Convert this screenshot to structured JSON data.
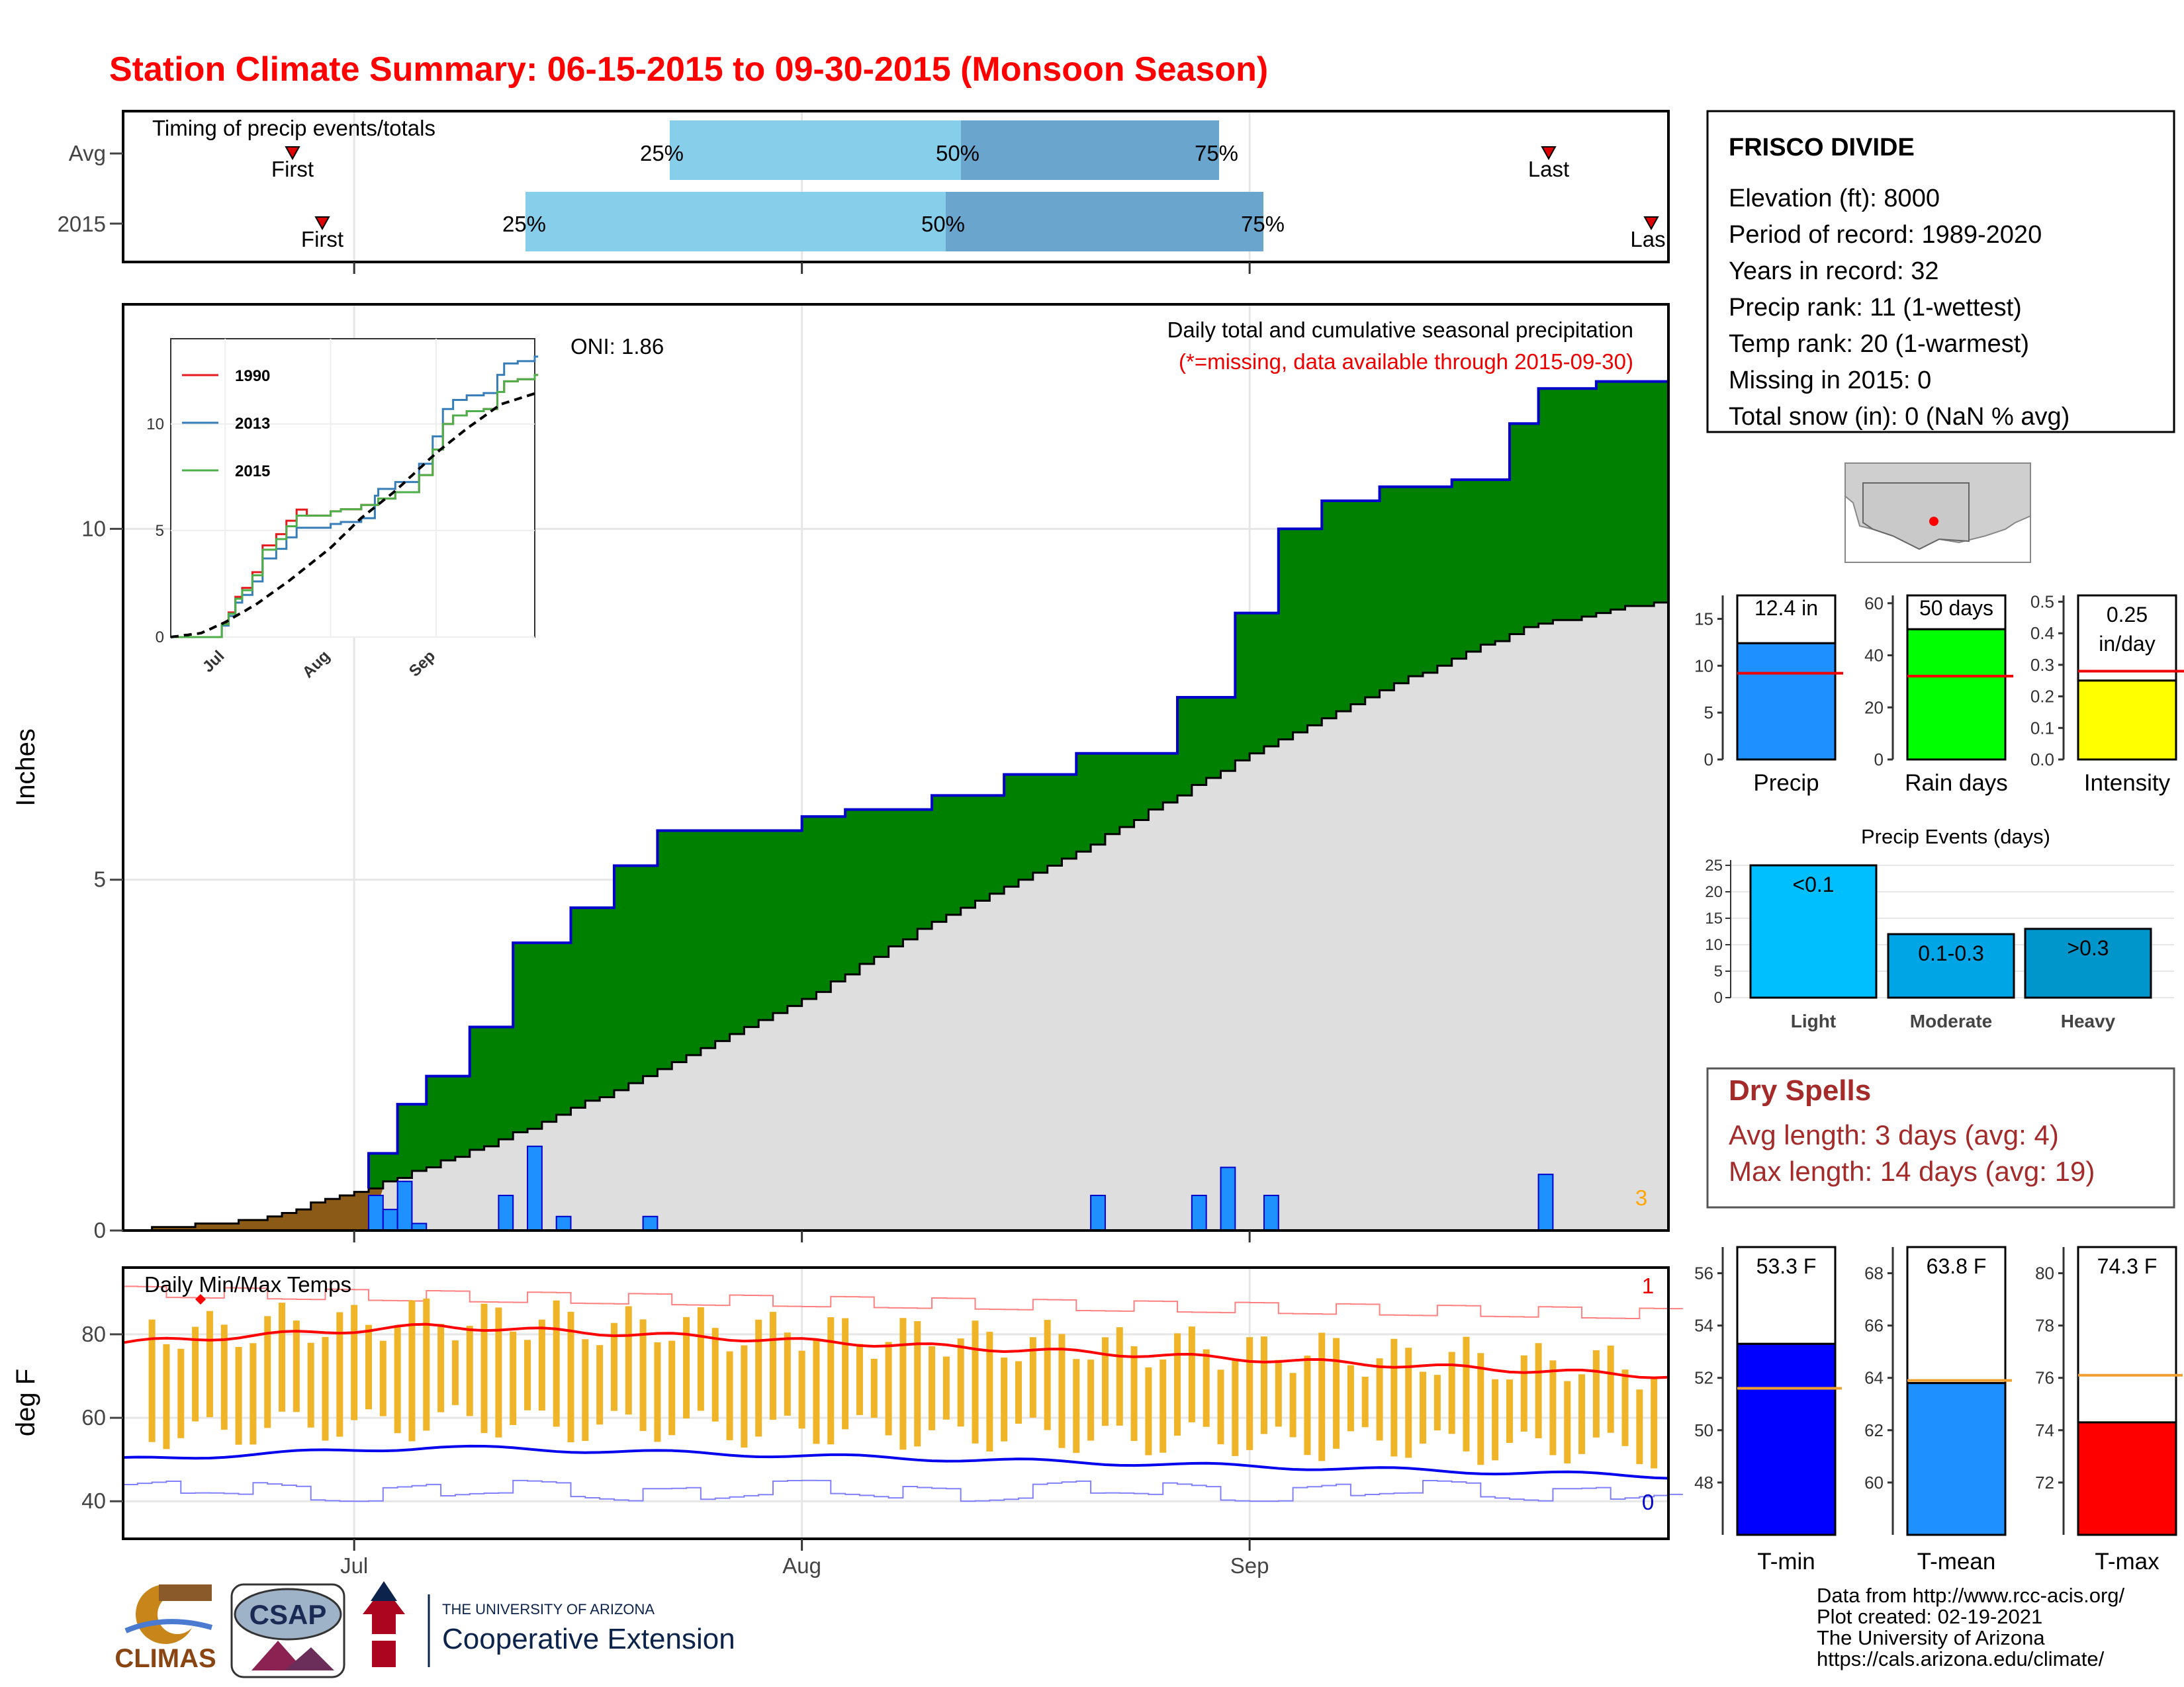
{
  "title": "Station Climate Summary: 06-15-2015 to 09-30-2015 (Monsoon Season)",
  "timing": {
    "label": "Timing of precip events/totals",
    "rows": [
      {
        "name": "Avg",
        "first": "First",
        "last": "Last",
        "p25": "25%",
        "p50": "50%",
        "p75": "75%"
      },
      {
        "name": "2015",
        "first": "First",
        "last": "Las",
        "p25": "25%",
        "p50": "50%",
        "p75": "75%"
      }
    ]
  },
  "precip_panel": {
    "ylabel": "Inches",
    "subtitle": "Daily total and cumulative seasonal precipitation",
    "note": "(*=missing, data available through 2015-09-30)",
    "oni": "ONI: 1.86",
    "corner_count": "3",
    "yticks": [
      "0",
      "5",
      "10"
    ]
  },
  "inset": {
    "legend": [
      "1990",
      "2013",
      "2015"
    ],
    "yticks": [
      "0",
      "5",
      "10"
    ],
    "xticks": [
      "Jul",
      "Aug",
      "Sep"
    ],
    "colors": {
      "1990": "#e41a1c",
      "2013": "#377eb8",
      "2015": "#4daf4a"
    }
  },
  "temp_panel": {
    "ylabel": "deg F",
    "label": "Daily Min/Max Temps",
    "top_count": "1",
    "bottom_count": "0",
    "yticks": [
      "40",
      "60",
      "80"
    ],
    "xticks": [
      "Jul",
      "Aug",
      "Sep"
    ]
  },
  "station": {
    "name": "FRISCO DIVIDE",
    "lines": [
      "Elevation (ft): 8000",
      "Period of record: 1989-2020",
      "Years in record: 32",
      "Precip rank: 11 (1-wettest)",
      "Temp rank: 20 (1-warmest)",
      "Missing in 2015: 0",
      "Total snow (in): 0 (NaN % avg)"
    ]
  },
  "mini_bars": [
    {
      "label": "Precip",
      "value_text": "12.4 in",
      "value": 12.4,
      "avg": 9.2,
      "ymax": 17.5,
      "yticks": [
        "0",
        "5",
        "10",
        "15"
      ],
      "color": "#1e90ff"
    },
    {
      "label": "Rain days",
      "value_text": "50 days",
      "value": 50,
      "avg": 32,
      "ymax": 63,
      "yticks": [
        "0",
        "20",
        "40",
        "60"
      ],
      "color": "#00ff00"
    },
    {
      "label": "Intensity",
      "value_text": "0.25 in/day",
      "value_line1": "0.25",
      "value_line2": "in/day",
      "value": 0.25,
      "avg": 0.28,
      "ymax": 0.52,
      "yticks": [
        "0.0",
        "0.1",
        "0.2",
        "0.3",
        "0.4",
        "0.5"
      ],
      "color": "#ffff00"
    }
  ],
  "events": {
    "title": "Precip Events (days)",
    "categories": [
      "Light",
      "Moderate",
      "Heavy"
    ],
    "labels": [
      "<0.1",
      "0.1-0.3",
      ">0.3"
    ],
    "values": [
      25,
      12,
      13
    ],
    "yticks": [
      "0",
      "5",
      "10",
      "15",
      "20",
      "25"
    ],
    "colors": [
      "#00bfff",
      "#00a5e6",
      "#0096cc"
    ]
  },
  "dry_spells": {
    "title": "Dry Spells",
    "avg_length": "Avg length: 3 days (avg: 4)",
    "max_length": "Max length: 14 days (avg: 19)"
  },
  "temp_bars": [
    {
      "label": "T-min",
      "value_text": "53.3 F",
      "value": 53.3,
      "avg": 51.6,
      "ymin": 46,
      "ymax": 57,
      "ticks": [
        "48",
        "50",
        "52",
        "54",
        "56"
      ],
      "color": "#0000ff"
    },
    {
      "label": "T-mean",
      "value_text": "63.8 F",
      "value": 63.8,
      "avg": 63.9,
      "ymin": 58,
      "ymax": 69,
      "ticks": [
        "60",
        "62",
        "64",
        "66",
        "68"
      ],
      "color": "#1e90ff"
    },
    {
      "label": "T-max",
      "value_text": "74.3 F",
      "value": 74.3,
      "avg": 76.1,
      "ymin": 70,
      "ymax": 81,
      "ticks": [
        "72",
        "74",
        "76",
        "78",
        "80"
      ],
      "color": "#ff0000"
    }
  ],
  "footer": {
    "lines": [
      "Data from http://www.rcc-acis.org/",
      "Plot created: 02-19-2021",
      "The University of Arizona",
      "https://cals.arizona.edu/climate/"
    ],
    "logo_climas": "CLIMAS",
    "logo_csap": "CSAP",
    "logo_ua_1": "THE UNIVERSITY OF ARIZONA",
    "logo_ua_2": "Cooperative Extension"
  },
  "chart_data": {
    "type": "area",
    "xlabel": "",
    "ylabel": "Inches",
    "x_start": "2015-06-15",
    "x_end": "2015-09-30",
    "xticks": [
      "Jul",
      "Aug",
      "Sep"
    ],
    "ylim": [
      0,
      13.2
    ],
    "series": [
      {
        "name": "observed cumulative",
        "x": [
          "2015-06-15",
          "2015-06-24",
          "2015-06-30",
          "2015-07-02",
          "2015-07-04",
          "2015-07-06",
          "2015-07-09",
          "2015-07-12",
          "2015-07-16",
          "2015-07-19",
          "2015-07-22",
          "2015-07-25",
          "2015-07-28",
          "2015-08-01",
          "2015-08-04",
          "2015-08-10",
          "2015-08-15",
          "2015-08-20",
          "2015-08-27",
          "2015-08-31",
          "2015-09-03",
          "2015-09-06",
          "2015-09-10",
          "2015-09-15",
          "2015-09-19",
          "2015-09-21",
          "2015-09-25",
          "2015-09-30"
        ],
        "values": [
          0,
          0,
          0.6,
          1.1,
          1.8,
          2.2,
          2.9,
          4.1,
          4.6,
          5.2,
          5.7,
          5.7,
          5.7,
          5.9,
          6.0,
          6.2,
          6.5,
          6.8,
          7.6,
          8.8,
          10.0,
          10.4,
          10.6,
          10.7,
          11.5,
          12.0,
          12.1,
          12.3
        ]
      },
      {
        "name": "average cumulative",
        "x": [
          "2015-06-15",
          "2015-06-24",
          "2015-07-01",
          "2015-07-10",
          "2015-07-20",
          "2015-08-01",
          "2015-08-10",
          "2015-08-20",
          "2015-09-01",
          "2015-09-10",
          "2015-09-20",
          "2015-09-30"
        ],
        "values": [
          0,
          0.15,
          0.55,
          1.2,
          2.1,
          3.3,
          4.4,
          5.4,
          6.8,
          7.7,
          8.6,
          9.0
        ]
      }
    ],
    "daily_precip": {
      "x": [
        "2015-07-02",
        "2015-07-03",
        "2015-07-04",
        "2015-07-05",
        "2015-07-11",
        "2015-07-13",
        "2015-07-15",
        "2015-07-21",
        "2015-08-21",
        "2015-08-28",
        "2015-08-30",
        "2015-09-02",
        "2015-09-21"
      ],
      "values": [
        0.5,
        0.3,
        0.7,
        0.1,
        0.5,
        1.2,
        0.2,
        0.2,
        0.5,
        0.5,
        0.9,
        0.5,
        0.8
      ]
    },
    "temps": {
      "tmax_avg_start": 78,
      "tmax_avg_peak": 82,
      "tmax_avg_end": 70,
      "tmin_avg_start": 50,
      "tmin_avg_peak": 53,
      "tmin_avg_end": 46,
      "tmax_record": 90,
      "tmin_record": 42
    }
  }
}
